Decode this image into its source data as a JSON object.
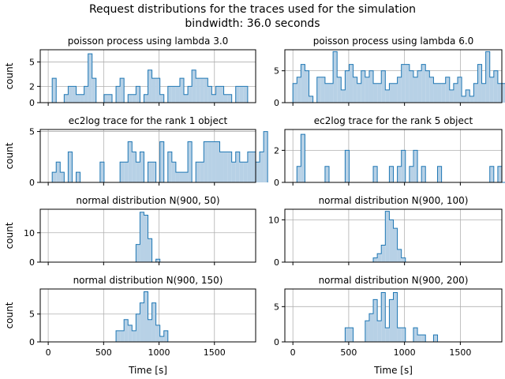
{
  "figure": {
    "title": "Request distributions for the traces used for the simulation",
    "subtitle": "bindwidth: 36.0 seconds",
    "fill_color": "#b7d1e6",
    "line_color": "#1f77b4",
    "grid_color": "#b0b0b0"
  },
  "chart_data": [
    {
      "type": "bar",
      "title": "poisson process using lambda 3.0",
      "xlabel": "",
      "ylabel": "count",
      "xlim": [
        -72,
        1872
      ],
      "ylim": [
        0,
        6.5
      ],
      "xticks": [
        0,
        500,
        1000,
        1500
      ],
      "yticks": [
        0,
        2,
        5
      ],
      "xticklabels": [
        "",
        "",
        "",
        ""
      ],
      "bin_start": 36,
      "bin_width": 36,
      "values": [
        3,
        0,
        0,
        1,
        2,
        2,
        1,
        1,
        2,
        6,
        3,
        0,
        0,
        1,
        1,
        0,
        2,
        3,
        0,
        1,
        1,
        2,
        0,
        1,
        4,
        3,
        3,
        1,
        0,
        2,
        2,
        2,
        3,
        1,
        2,
        4,
        3,
        3,
        3,
        2,
        1,
        2,
        2,
        1,
        1,
        0,
        2,
        2,
        2
      ]
    },
    {
      "type": "bar",
      "title": "poisson process using lambda 6.0",
      "xlabel": "",
      "ylabel": "",
      "xlim": [
        -72,
        1872
      ],
      "ylim": [
        0,
        8.3
      ],
      "xticks": [
        0,
        500,
        1000,
        1500
      ],
      "yticks": [
        0,
        5
      ],
      "xticklabels": [
        "",
        "",
        "",
        ""
      ],
      "bin_start": 0,
      "bin_width": 36,
      "values": [
        3,
        4,
        6,
        5,
        1,
        0,
        4,
        4,
        3,
        3,
        8,
        4,
        2,
        5,
        6,
        4,
        3,
        5,
        4,
        5,
        3,
        3,
        5,
        2,
        3,
        3,
        4,
        6,
        6,
        5,
        4,
        5,
        6,
        5,
        4,
        3,
        3,
        3,
        4,
        2,
        3,
        4,
        1,
        2,
        1,
        3,
        6,
        3,
        8,
        4,
        5,
        3,
        3,
        3,
        5,
        4,
        4,
        4,
        3,
        3
      ]
    },
    {
      "type": "bar",
      "title": "ec2log trace for the rank 1 object",
      "xlabel": "",
      "ylabel": "count",
      "xlim": [
        -72,
        1872
      ],
      "ylim": [
        0,
        5.2
      ],
      "xticks": [
        0,
        500,
        1000,
        1500
      ],
      "yticks": [
        0,
        5
      ],
      "xticklabels": [
        "",
        "",
        "",
        ""
      ],
      "bin_start": 36,
      "bin_width": 36,
      "values": [
        1,
        2,
        1,
        0,
        3,
        0,
        1,
        0,
        0,
        0,
        0,
        0,
        2,
        0,
        0,
        0,
        0,
        2,
        2,
        4,
        3,
        2,
        3,
        0,
        2,
        2,
        0,
        4,
        0,
        3,
        2,
        1,
        1,
        1,
        4,
        0,
        2,
        2,
        4,
        4,
        4,
        4,
        3,
        3,
        3,
        2,
        3,
        2,
        2,
        3,
        3,
        2,
        3,
        5
      ]
    },
    {
      "type": "bar",
      "title": "ec2log trace for the rank 5 object",
      "xlabel": "",
      "ylabel": "",
      "xlim": [
        -72,
        1872
      ],
      "ylim": [
        0,
        3.3
      ],
      "xticks": [
        0,
        500,
        1000,
        1500
      ],
      "yticks": [
        0,
        2
      ],
      "xticklabels": [
        "",
        "",
        "",
        ""
      ],
      "bin_start": 36,
      "bin_width": 36,
      "values": [
        1,
        3,
        0,
        0,
        0,
        0,
        0,
        1,
        0,
        0,
        0,
        0,
        2,
        0,
        0,
        0,
        0,
        0,
        0,
        1,
        0,
        0,
        0,
        1,
        0,
        1,
        2,
        0,
        1,
        2,
        0,
        1,
        0,
        0,
        0,
        1,
        0,
        0,
        0,
        0,
        0,
        0,
        0,
        0,
        0,
        0,
        0,
        0,
        1,
        0,
        1,
        0,
        1,
        1
      ]
    },
    {
      "type": "bar",
      "title": "normal distribution N(900, 50)",
      "xlabel": "",
      "ylabel": "count",
      "xlim": [
        -72,
        1872
      ],
      "ylim": [
        0,
        18
      ],
      "xticks": [
        0,
        500,
        1000,
        1500
      ],
      "yticks": [
        0,
        10
      ],
      "xticklabels": [
        "",
        "",
        "",
        ""
      ],
      "bin_start": 792,
      "bin_width": 36,
      "values": [
        6,
        17,
        16,
        8,
        0,
        1
      ]
    },
    {
      "type": "bar",
      "title": "normal distribution N(900, 100)",
      "xlabel": "",
      "ylabel": "",
      "xlim": [
        -72,
        1872
      ],
      "ylim": [
        0,
        12.5
      ],
      "xticks": [
        0,
        500,
        1000,
        1500
      ],
      "yticks": [
        0,
        10
      ],
      "xticklabels": [
        "",
        "",
        "",
        ""
      ],
      "bin_start": 720,
      "bin_width": 36,
      "values": [
        1,
        2,
        4,
        12,
        10,
        8,
        3,
        1
      ]
    },
    {
      "type": "bar",
      "title": "normal distribution N(900, 150)",
      "xlabel": "Time [s]",
      "ylabel": "count",
      "xlim": [
        -72,
        1872
      ],
      "ylim": [
        0,
        9.5
      ],
      "xticks": [
        0,
        500,
        1000,
        1500
      ],
      "yticks": [
        0,
        5
      ],
      "xticklabels": [
        "0",
        "500",
        "1000",
        "1500"
      ],
      "bin_start": 612,
      "bin_width": 36,
      "values": [
        2,
        2,
        4,
        3,
        2,
        5,
        7,
        9,
        4,
        7,
        3,
        1,
        2
      ]
    },
    {
      "type": "bar",
      "title": "normal distribution N(900, 200)",
      "xlabel": "Time [s]",
      "ylabel": "",
      "xlim": [
        -72,
        1872
      ],
      "ylim": [
        0,
        7.5
      ],
      "xticks": [
        0,
        500,
        1000,
        1500
      ],
      "yticks": [
        0,
        5
      ],
      "xticklabels": [
        "0",
        "500",
        "1000",
        "1500"
      ],
      "bin_start": 468,
      "bin_width": 36,
      "values": [
        2,
        2,
        0,
        0,
        0,
        3,
        4,
        6,
        3,
        7,
        2,
        6,
        7,
        2,
        2,
        0,
        0,
        2,
        1,
        1,
        0,
        0,
        1
      ]
    }
  ]
}
